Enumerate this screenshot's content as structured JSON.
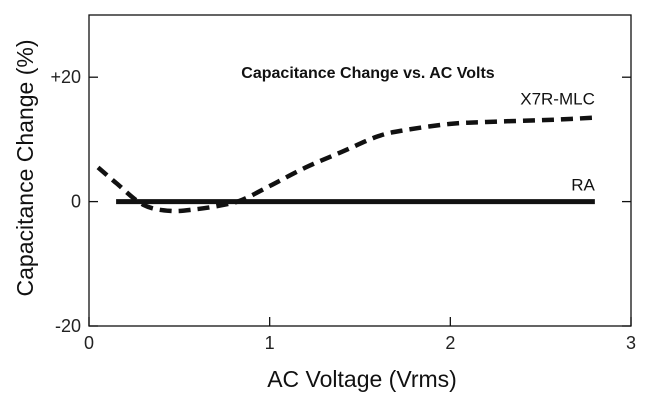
{
  "chart_data": {
    "type": "line",
    "title": "Capacitance Change vs. AC Volts",
    "xlabel": "AC Voltage (Vrms)",
    "ylabel": "Capacitance Change (%)",
    "xlim": [
      0,
      3
    ],
    "ylim": [
      -20,
      30
    ],
    "x_ticks": [
      {
        "value": 0,
        "label": "0"
      },
      {
        "value": 1,
        "label": "1"
      },
      {
        "value": 2,
        "label": "2"
      },
      {
        "value": 3,
        "label": "3"
      }
    ],
    "y_ticks": [
      {
        "value": 20,
        "label": "+20"
      },
      {
        "value": 0,
        "label": "0"
      },
      {
        "value": -20,
        "label": "-20"
      }
    ],
    "grid": false,
    "series": [
      {
        "name": "X7R-MLC",
        "style": "dashed",
        "color": "#111111",
        "x": [
          0.05,
          0.15,
          0.3,
          0.45,
          0.6,
          0.75,
          0.85,
          1.0,
          1.2,
          1.4,
          1.6,
          1.75,
          2.0,
          2.2,
          2.4,
          2.6,
          2.8
        ],
        "y": [
          5.5,
          3.0,
          -0.5,
          -1.5,
          -1.2,
          -0.5,
          0.3,
          2.5,
          5.5,
          8.0,
          10.5,
          11.5,
          12.5,
          12.8,
          13.0,
          13.2,
          13.5
        ]
      },
      {
        "name": "RA",
        "style": "solid",
        "color": "#111111",
        "x": [
          0.15,
          2.8
        ],
        "y": [
          0,
          0
        ]
      }
    ]
  }
}
